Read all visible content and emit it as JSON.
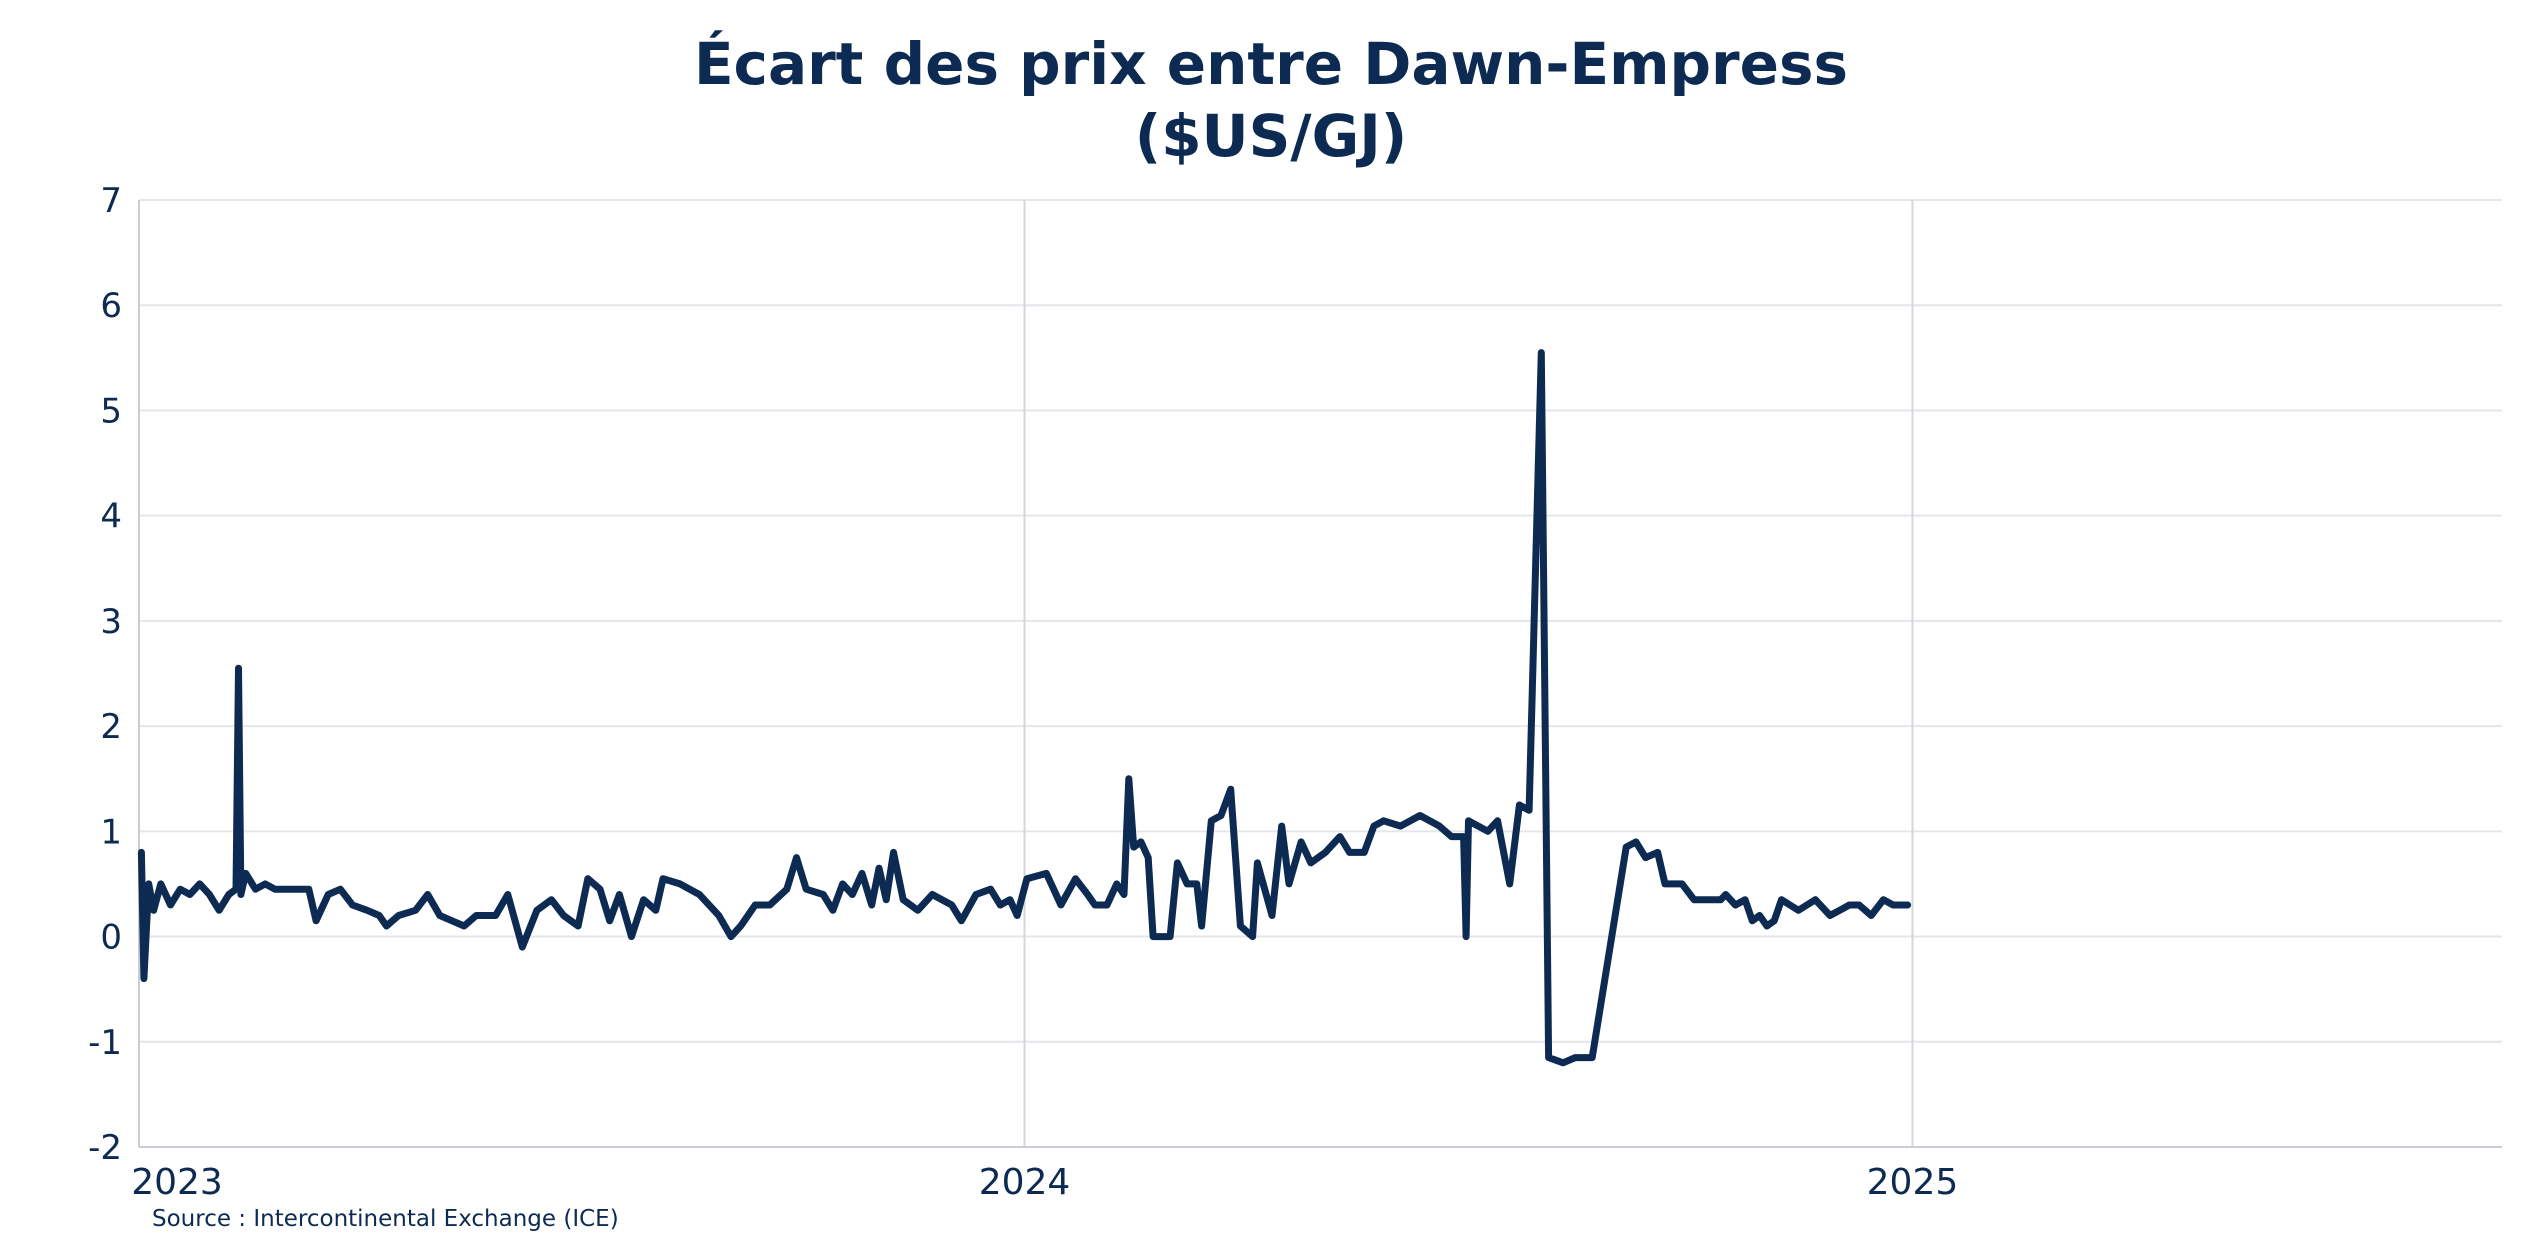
{
  "chart_data": {
    "type": "line",
    "title": [
      "Écart des prix entre Dawn-Empress",
      "($US/GJ)"
    ],
    "xlabel": "",
    "ylabel": "",
    "x_range": [
      "2023-01-01",
      "2025-09-01"
    ],
    "ylim": [
      -2,
      7
    ],
    "y_ticks": [
      -2,
      -1,
      0,
      1,
      2,
      3,
      4,
      5,
      6,
      7
    ],
    "x_ticks": [
      {
        "date": "2023-01-01",
        "label": "2023"
      },
      {
        "date": "2024-01-01",
        "label": "2024"
      },
      {
        "date": "2025-01-01",
        "label": "2025"
      }
    ],
    "grid": true,
    "line_color": "#0d2b52",
    "series": [
      {
        "name": "",
        "points": [
          [
            "2023-01-02",
            0.8
          ],
          [
            "2023-01-03",
            -0.4
          ],
          [
            "2023-01-05",
            0.5
          ],
          [
            "2023-01-07",
            0.25
          ],
          [
            "2023-01-10",
            0.5
          ],
          [
            "2023-01-14",
            0.3
          ],
          [
            "2023-01-18",
            0.45
          ],
          [
            "2023-01-22",
            0.4
          ],
          [
            "2023-01-26",
            0.5
          ],
          [
            "2023-01-30",
            0.4
          ],
          [
            "2023-02-03",
            0.25
          ],
          [
            "2023-02-07",
            0.4
          ],
          [
            "2023-02-10",
            0.45
          ],
          [
            "2023-02-11",
            2.55
          ],
          [
            "2023-02-12",
            0.4
          ],
          [
            "2023-02-14",
            0.6
          ],
          [
            "2023-02-18",
            0.45
          ],
          [
            "2023-02-22",
            0.5
          ],
          [
            "2023-02-26",
            0.45
          ],
          [
            "2023-03-05",
            0.45
          ],
          [
            "2023-03-12",
            0.45
          ],
          [
            "2023-03-15",
            0.15
          ],
          [
            "2023-03-20",
            0.4
          ],
          [
            "2023-03-25",
            0.45
          ],
          [
            "2023-03-30",
            0.3
          ],
          [
            "2023-04-05",
            0.25
          ],
          [
            "2023-04-10",
            0.2
          ],
          [
            "2023-04-13",
            0.1
          ],
          [
            "2023-04-18",
            0.2
          ],
          [
            "2023-04-25",
            0.25
          ],
          [
            "2023-04-30",
            0.4
          ],
          [
            "2023-05-05",
            0.2
          ],
          [
            "2023-05-10",
            0.15
          ],
          [
            "2023-05-15",
            0.1
          ],
          [
            "2023-05-20",
            0.2
          ],
          [
            "2023-05-28",
            0.2
          ],
          [
            "2023-06-02",
            0.4
          ],
          [
            "2023-06-08",
            -0.1
          ],
          [
            "2023-06-14",
            0.25
          ],
          [
            "2023-06-20",
            0.35
          ],
          [
            "2023-06-25",
            0.2
          ],
          [
            "2023-07-01",
            0.1
          ],
          [
            "2023-07-05",
            0.55
          ],
          [
            "2023-07-10",
            0.45
          ],
          [
            "2023-07-14",
            0.15
          ],
          [
            "2023-07-18",
            0.4
          ],
          [
            "2023-07-23",
            0.0
          ],
          [
            "2023-07-28",
            0.35
          ],
          [
            "2023-08-02",
            0.25
          ],
          [
            "2023-08-05",
            0.55
          ],
          [
            "2023-08-12",
            0.5
          ],
          [
            "2023-08-20",
            0.4
          ],
          [
            "2023-08-28",
            0.2
          ],
          [
            "2023-09-02",
            0.0
          ],
          [
            "2023-09-06",
            0.1
          ],
          [
            "2023-09-12",
            0.3
          ],
          [
            "2023-09-18",
            0.3
          ],
          [
            "2023-09-25",
            0.45
          ],
          [
            "2023-09-29",
            0.75
          ],
          [
            "2023-10-03",
            0.45
          ],
          [
            "2023-10-10",
            0.4
          ],
          [
            "2023-10-14",
            0.25
          ],
          [
            "2023-10-18",
            0.5
          ],
          [
            "2023-10-22",
            0.4
          ],
          [
            "2023-10-26",
            0.6
          ],
          [
            "2023-10-30",
            0.3
          ],
          [
            "2023-11-02",
            0.65
          ],
          [
            "2023-11-05",
            0.35
          ],
          [
            "2023-11-08",
            0.8
          ],
          [
            "2023-11-12",
            0.35
          ],
          [
            "2023-11-18",
            0.25
          ],
          [
            "2023-11-24",
            0.4
          ],
          [
            "2023-12-02",
            0.3
          ],
          [
            "2023-12-06",
            0.15
          ],
          [
            "2023-12-12",
            0.4
          ],
          [
            "2023-12-18",
            0.45
          ],
          [
            "2023-12-22",
            0.3
          ],
          [
            "2023-12-26",
            0.35
          ],
          [
            "2023-12-29",
            0.2
          ],
          [
            "2024-01-02",
            0.55
          ],
          [
            "2024-01-10",
            0.6
          ],
          [
            "2024-01-16",
            0.3
          ],
          [
            "2024-01-22",
            0.55
          ],
          [
            "2024-01-27",
            0.4
          ],
          [
            "2024-01-30",
            0.3
          ],
          [
            "2024-02-04",
            0.3
          ],
          [
            "2024-02-08",
            0.5
          ],
          [
            "2024-02-11",
            0.4
          ],
          [
            "2024-02-13",
            1.5
          ],
          [
            "2024-02-15",
            0.85
          ],
          [
            "2024-02-18",
            0.9
          ],
          [
            "2024-02-21",
            0.75
          ],
          [
            "2024-02-23",
            0.0
          ],
          [
            "2024-03-01",
            0.0
          ],
          [
            "2024-03-04",
            0.7
          ],
          [
            "2024-03-08",
            0.5
          ],
          [
            "2024-03-12",
            0.5
          ],
          [
            "2024-03-14",
            0.1
          ],
          [
            "2024-03-18",
            1.1
          ],
          [
            "2024-03-22",
            1.15
          ],
          [
            "2024-03-26",
            1.4
          ],
          [
            "2024-03-30",
            0.1
          ],
          [
            "2024-04-04",
            0.0
          ],
          [
            "2024-04-06",
            0.7
          ],
          [
            "2024-04-12",
            0.2
          ],
          [
            "2024-04-16",
            1.05
          ],
          [
            "2024-04-19",
            0.5
          ],
          [
            "2024-04-24",
            0.9
          ],
          [
            "2024-04-28",
            0.7
          ],
          [
            "2024-05-04",
            0.8
          ],
          [
            "2024-05-10",
            0.95
          ],
          [
            "2024-05-14",
            0.8
          ],
          [
            "2024-05-20",
            0.8
          ],
          [
            "2024-05-24",
            1.05
          ],
          [
            "2024-05-28",
            1.1
          ],
          [
            "2024-06-04",
            1.05
          ],
          [
            "2024-06-12",
            1.15
          ],
          [
            "2024-06-20",
            1.05
          ],
          [
            "2024-06-25",
            0.95
          ],
          [
            "2024-06-30",
            0.95
          ],
          [
            "2024-07-02",
            1.1
          ],
          [
            "2024-07-06",
            1.05
          ],
          [
            "2024-07-10",
            1.0
          ],
          [
            "2024-07-14",
            1.1
          ],
          [
            "2024-07-19",
            0.5
          ],
          [
            "2024-07-23",
            1.25
          ],
          [
            "2024-07-27",
            1.2
          ],
          [
            "2024-08-01",
            5.55
          ],
          [
            "2024-08-04",
            -1.15
          ],
          [
            "2024-08-10",
            -1.2
          ],
          [
            "2024-08-15",
            -1.15
          ],
          [
            "2024-08-22",
            -1.15
          ],
          [
            "2024-09-05",
            0.85
          ],
          [
            "2024-09-09",
            0.9
          ],
          [
            "2024-09-13",
            0.75
          ],
          [
            "2024-09-18",
            0.8
          ],
          [
            "2024-09-21",
            0.5
          ],
          [
            "2024-09-28",
            0.5
          ],
          [
            "2024-10-03",
            0.35
          ],
          [
            "2024-10-08",
            0.35
          ],
          [
            "2024-10-14",
            0.35
          ],
          [
            "2024-10-16",
            0.4
          ],
          [
            "2024-10-20",
            0.3
          ],
          [
            "2024-10-24",
            0.35
          ],
          [
            "2024-10-27",
            0.15
          ],
          [
            "2024-10-30",
            0.2
          ],
          [
            "2024-11-02",
            0.1
          ],
          [
            "2024-11-05",
            0.15
          ],
          [
            "2024-11-08",
            0.35
          ],
          [
            "2024-11-15",
            0.25
          ],
          [
            "2024-11-22",
            0.35
          ],
          [
            "2024-11-28",
            0.2
          ],
          [
            "2024-12-02",
            0.25
          ],
          [
            "2024-12-06",
            0.3
          ],
          [
            "2024-12-10",
            0.3
          ],
          [
            "2024-12-15",
            0.2
          ],
          [
            "2024-12-20",
            0.35
          ],
          [
            "2024-12-24",
            0.3
          ],
          [
            "2024-12-30",
            0.3
          ],
          [
            "2024-07-01",
            0.0
          ]
        ]
      }
    ]
  },
  "source": "Source : Intercontinental Exchange (ICE)"
}
